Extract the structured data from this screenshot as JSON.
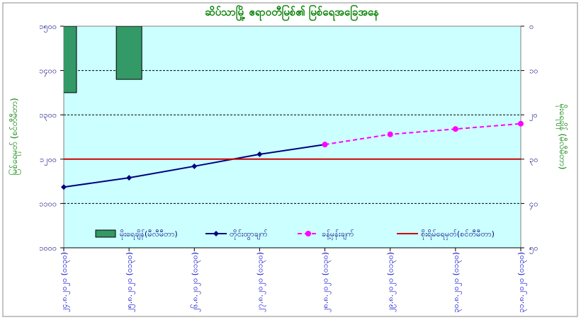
{
  "chart_data": {
    "type": "combo",
    "title": "ဆိပ်သာမြို့ ဧရာဝတီမြစ်၏ မြစ်ရေအခြေအနေ",
    "y_label": "မြစ်ရေမှတ် (စင်တီမီတာ)",
    "y2_label": "မိုးရေချိန် (မီလီမီတာ)",
    "categories": [
      "၂၄.၈.၂၀၂၀ (၀၁၃၀)",
      "၂၅.၈.၂၀၂၀ (၀၁၃၀)",
      "၂၆.၈.၂၀၂၀ (၀၁၃၀)",
      "၂၇.၈.၂၀၂၀ (၀၁၃၀)",
      "၂၈.၈.၂၀၂၀ (၀၁၃၀)",
      "၂၉.၈.၂၀၂၀ (၀၁၃၀)",
      "၃၀.၈.၂၀၂၀ (၀၁၃၀)",
      "၃၁.၈.၂၀၂၀ (၀၁၃၀)"
    ],
    "ylim": [
      1000,
      1500
    ],
    "yticks": [
      {
        "value": 1000,
        "label": "၁၀၀၀"
      },
      {
        "value": 1100,
        "label": "၁၁၀၀"
      },
      {
        "value": 1200,
        "label": "၁၂၀၀"
      },
      {
        "value": 1300,
        "label": "၁၃၀၀"
      },
      {
        "value": 1400,
        "label": "၁၄၀၀"
      },
      {
        "value": 1500,
        "label": "၁၅၀၀"
      }
    ],
    "y2lim": [
      50,
      0
    ],
    "y2ticks": [
      {
        "value": 0,
        "label": "၀"
      },
      {
        "value": 10,
        "label": "၁၀"
      },
      {
        "value": 20,
        "label": "၂၀"
      },
      {
        "value": 30,
        "label": "၃၀"
      },
      {
        "value": 40,
        "label": "၄၀"
      },
      {
        "value": 50,
        "label": "၅၀"
      }
    ],
    "grid": true,
    "series": [
      {
        "name": "မိုးရေချိန်(မီလီမီတာ)",
        "type": "bar",
        "axis": "y2",
        "color": "#339966",
        "values": [
          15,
          12,
          0,
          0,
          0,
          0,
          0,
          0
        ]
      },
      {
        "name": "တိုင်းထွာချက်",
        "type": "line",
        "color": "#000080",
        "marker": "diamond",
        "dash": false,
        "values": [
          1137,
          1158,
          1184,
          1211,
          1233,
          null,
          null,
          null
        ]
      },
      {
        "name": "ခန့်မှန်းချက်",
        "type": "line",
        "color": "#ff00ff",
        "marker": "circle",
        "dash": true,
        "values": [
          null,
          null,
          null,
          null,
          1233,
          1256,
          1268,
          1280
        ]
      },
      {
        "name": "စိုးရိမ်ရေမှတ်(စင်တီမီတာ)",
        "type": "line",
        "color": "#cc0000",
        "marker": "none",
        "dash": false,
        "values": [
          1200,
          1200,
          1200,
          1200,
          1200,
          1200,
          1200,
          1200
        ]
      }
    ]
  }
}
